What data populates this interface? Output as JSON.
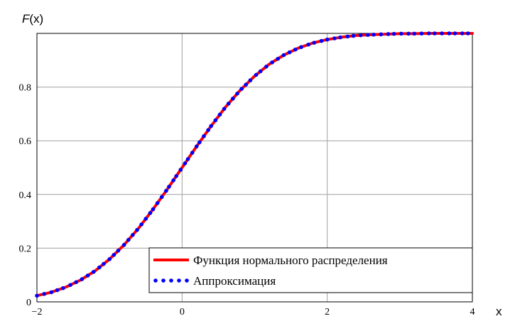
{
  "chart_data": {
    "type": "line",
    "title": "",
    "ylabel": "F(x)",
    "ylabel_parts": {
      "func": "F",
      "arg": "(x)"
    },
    "xlabel": "x",
    "xlim": [
      -2,
      4
    ],
    "ylim": [
      0,
      1
    ],
    "grid": true,
    "legend_placement": "bottom-right",
    "x_ticks": [
      {
        "value": -2,
        "label": "−2"
      },
      {
        "value": 0,
        "label": "0"
      },
      {
        "value": 2,
        "label": "2"
      },
      {
        "value": 4,
        "label": "4"
      }
    ],
    "y_ticks": [
      {
        "value": 0,
        "label": "0"
      },
      {
        "value": 0.2,
        "label": "0.2"
      },
      {
        "value": 0.4,
        "label": "0.4"
      },
      {
        "value": 0.6,
        "label": "0.6"
      },
      {
        "value": 0.8,
        "label": "0.8"
      }
    ],
    "series": [
      {
        "name": "Функция нормального распределения",
        "style": "solid",
        "color": "#ff0000",
        "x": [
          -2.0,
          -1.8,
          -1.6,
          -1.4,
          -1.2,
          -1.0,
          -0.8,
          -0.6,
          -0.4,
          -0.2,
          0.0,
          0.2,
          0.4,
          0.6,
          0.8,
          1.0,
          1.2,
          1.4,
          1.6,
          1.8,
          2.0,
          2.2,
          2.4,
          2.6,
          2.8,
          3.0,
          3.2,
          3.4,
          3.6,
          3.8,
          4.0
        ],
        "y": [
          0.023,
          0.036,
          0.055,
          0.081,
          0.115,
          0.159,
          0.212,
          0.274,
          0.345,
          0.421,
          0.5,
          0.579,
          0.655,
          0.726,
          0.788,
          0.841,
          0.885,
          0.919,
          0.945,
          0.964,
          0.977,
          0.986,
          0.992,
          0.995,
          0.997,
          0.999,
          0.999,
          1.0,
          1.0,
          1.0,
          1.0
        ]
      },
      {
        "name": "Аппроксимация",
        "style": "dotted",
        "color": "#0000ff",
        "x": [
          -2.0,
          -1.8,
          -1.6,
          -1.4,
          -1.2,
          -1.0,
          -0.8,
          -0.6,
          -0.4,
          -0.2,
          0.0,
          0.2,
          0.4,
          0.6,
          0.8,
          1.0,
          1.2,
          1.4,
          1.6,
          1.8,
          2.0,
          2.2,
          2.4,
          2.6,
          2.8,
          3.0,
          3.2,
          3.4,
          3.6,
          3.8,
          4.0
        ],
        "y": [
          0.023,
          0.036,
          0.055,
          0.081,
          0.115,
          0.159,
          0.212,
          0.274,
          0.345,
          0.421,
          0.5,
          0.579,
          0.655,
          0.726,
          0.788,
          0.841,
          0.885,
          0.919,
          0.945,
          0.964,
          0.977,
          0.986,
          0.992,
          0.995,
          0.997,
          0.999,
          0.999,
          1.0,
          1.0,
          1.0,
          1.0
        ]
      }
    ]
  }
}
